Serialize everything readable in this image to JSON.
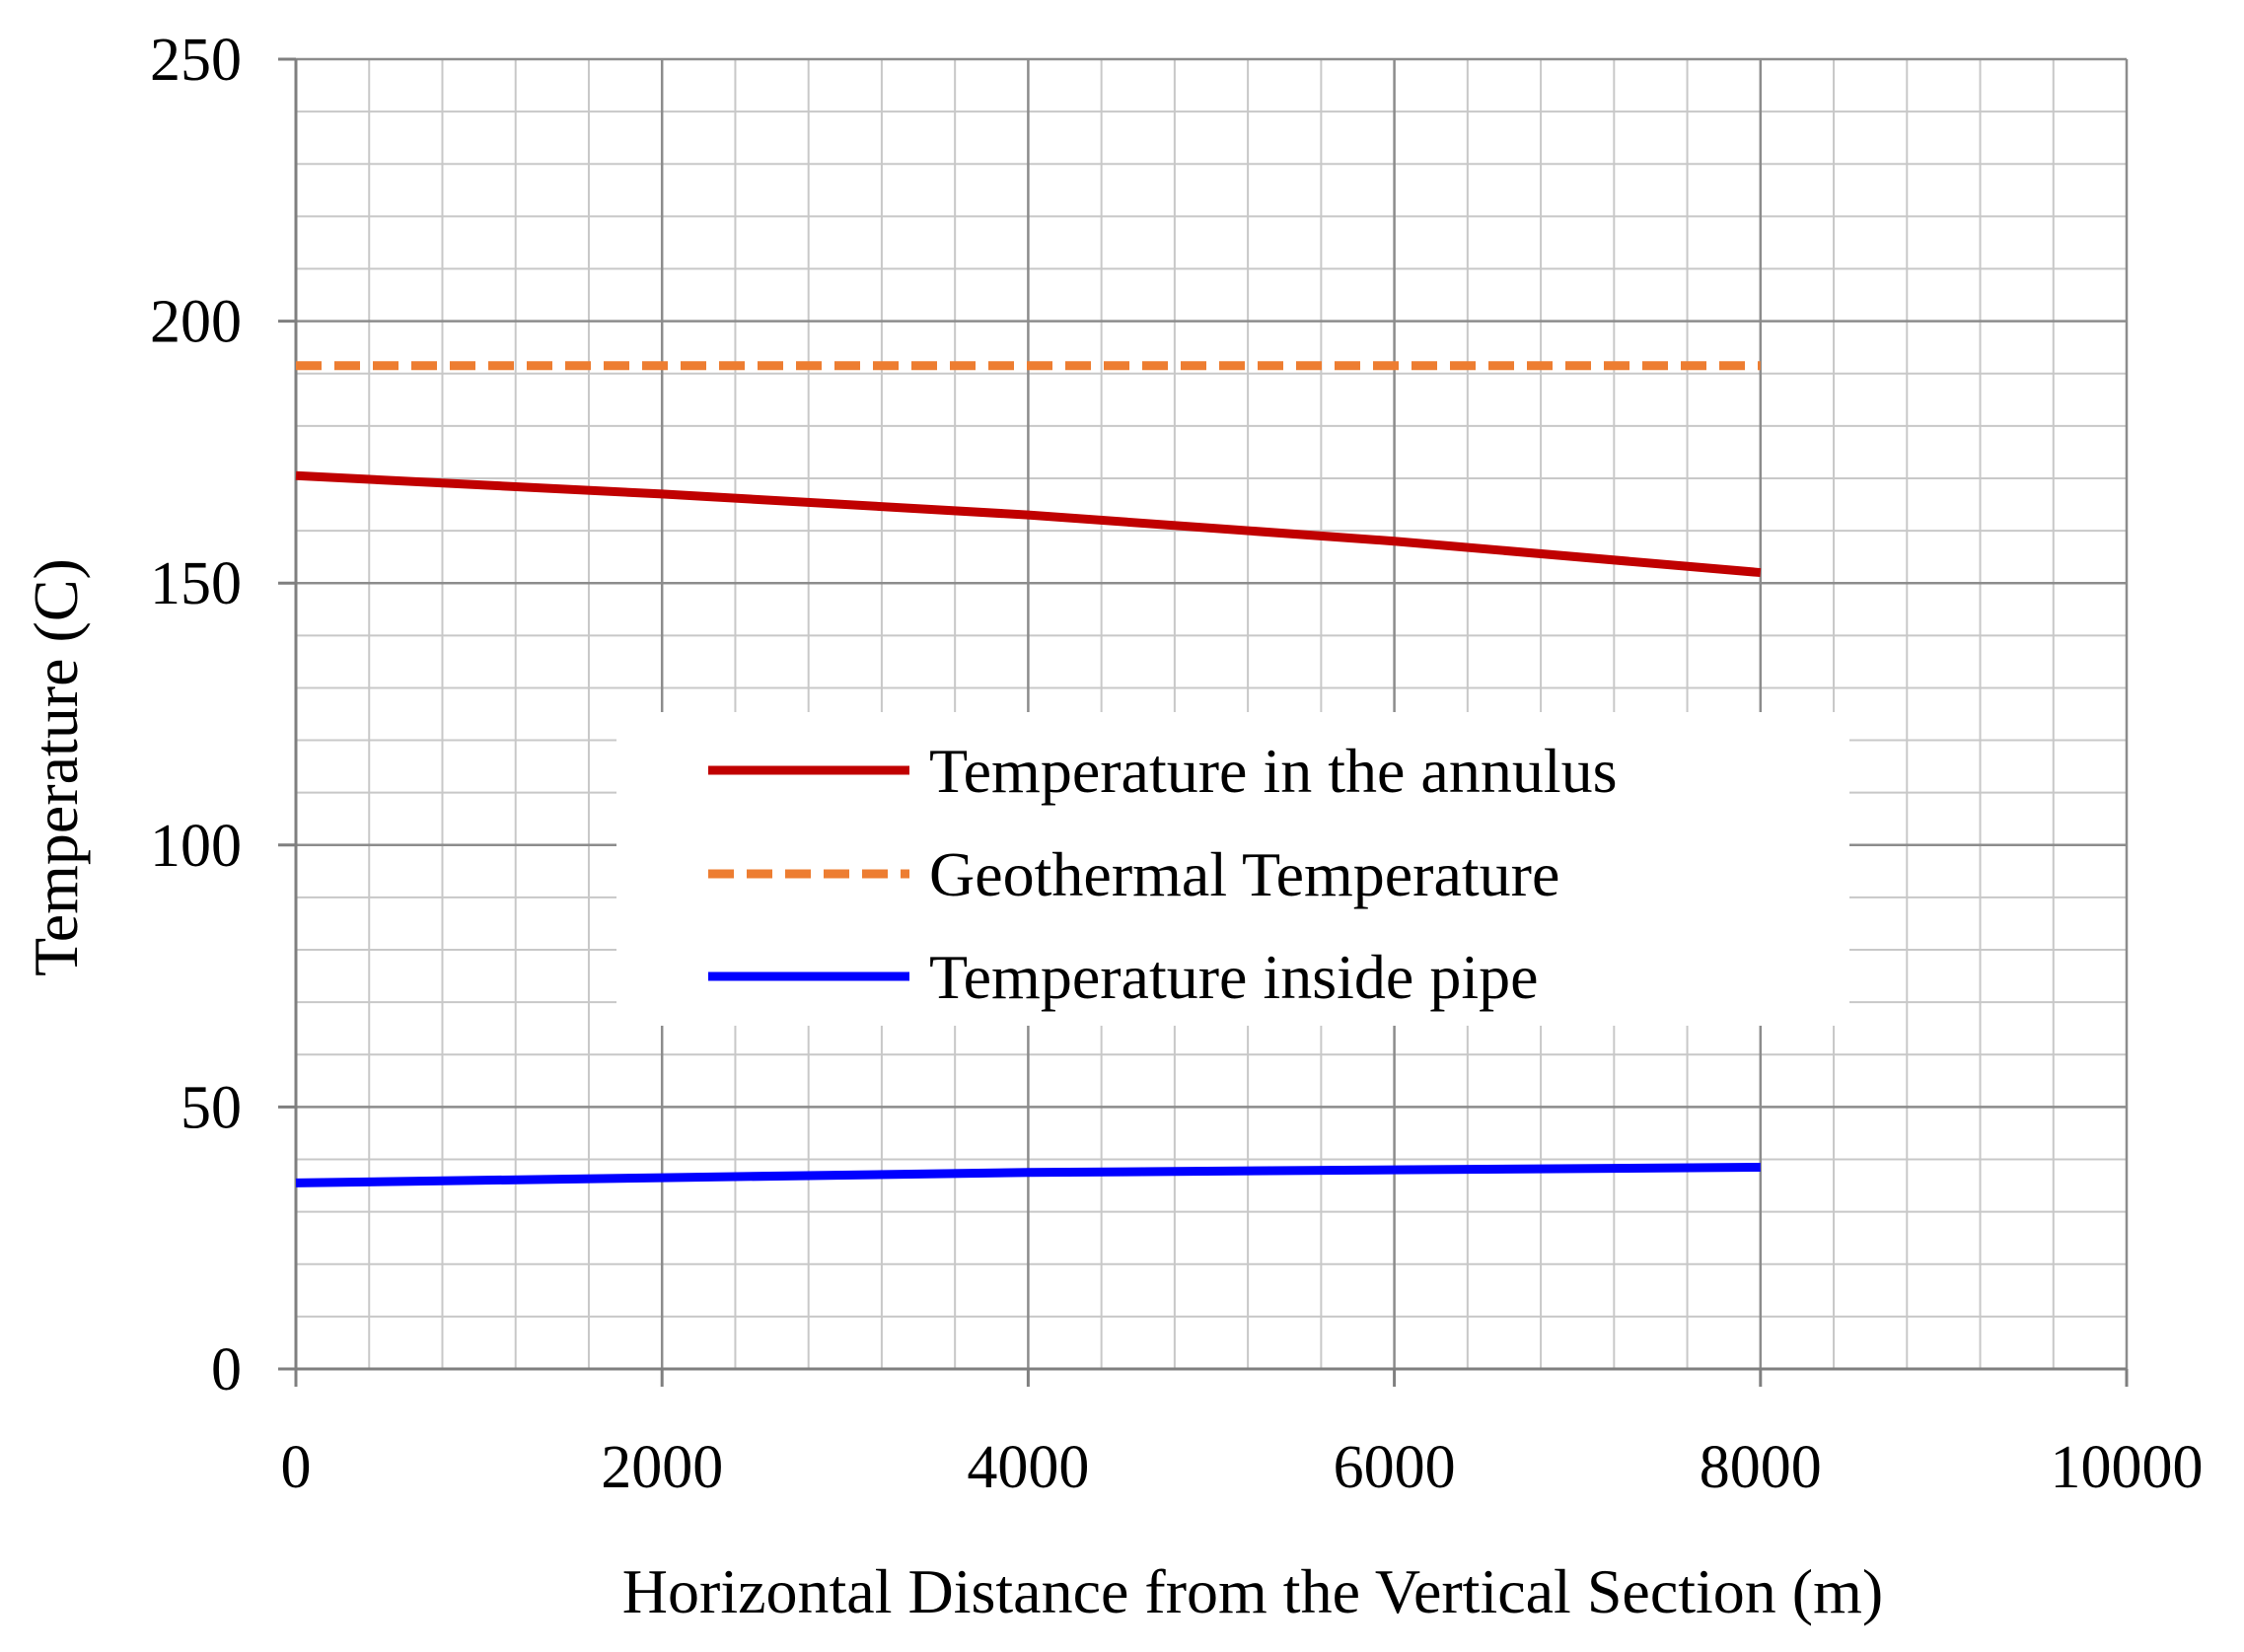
{
  "chart_data": {
    "type": "line",
    "title": "",
    "xlabel": "Horizontal Distance from the Vertical Section (m)",
    "ylabel": "Temperature (C)",
    "xlim": [
      0,
      10000
    ],
    "ylim": [
      0,
      250
    ],
    "x_major_step": 2000,
    "x_minor_step": 400,
    "y_major_step": 50,
    "y_minor_step": 10,
    "x_ticks": [
      "0",
      "2000",
      "4000",
      "6000",
      "8000",
      "10000"
    ],
    "y_ticks": [
      "0",
      "50",
      "100",
      "150",
      "200",
      "250"
    ],
    "grid": true,
    "legend_position": "center",
    "series": [
      {
        "name": "Temperature in the annulus",
        "color": "#C00000",
        "style": "solid",
        "x": [
          0,
          2000,
          4000,
          6000,
          8000
        ],
        "y": [
          170.5,
          167,
          163,
          158,
          152
        ]
      },
      {
        "name": "Geothermal Temperature",
        "color": "#ED7D31",
        "style": "dashed",
        "x": [
          0,
          8000
        ],
        "y": [
          191.5,
          191.5
        ]
      },
      {
        "name": "Temperature inside pipe",
        "color": "#0000FF",
        "style": "solid",
        "x": [
          0,
          2000,
          4000,
          6000,
          8000
        ],
        "y": [
          35.5,
          36.5,
          37.5,
          38,
          38.5
        ]
      }
    ]
  }
}
